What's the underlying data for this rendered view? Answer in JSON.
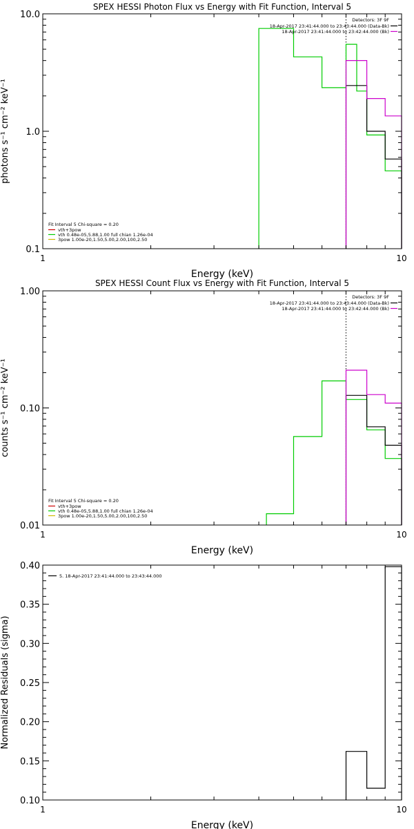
{
  "chart_data": [
    {
      "type": "line",
      "title": "SPEX HESSI Photon Flux vs Energy with Fit Function, Interval 5",
      "xlabel": "Energy (keV)",
      "ylabel": "photons s⁻¹ cm⁻² keV⁻¹",
      "xscale": "log",
      "yscale": "log",
      "xlim": [
        1,
        10
      ],
      "ylim": [
        0.1,
        10.0
      ],
      "x_ticks": [
        "1",
        "10"
      ],
      "y_ticks": [
        "0.1",
        "1.0",
        "10.0"
      ],
      "grid": false,
      "legend_top_right": {
        "header": "Detectors: 3F 9F",
        "entries": [
          {
            "text": "18-Apr-2017 23:41:44.000 to 23:43:44.000 (Data-Bk)",
            "color": "#000000"
          },
          {
            "text": "18-Apr-2017 23:41:44.000 to 23:42:44.000 (Bk)",
            "color": "#cc00cc"
          }
        ]
      },
      "legend_bottom_left": {
        "header": "Fit Interval  5   Chi-square = 0.20",
        "entries": [
          {
            "text": "vth+3pow",
            "color": "#cc0000"
          },
          {
            "text": "vth 0.48e-05,5.88,1.00  full chian 1.26e-04",
            "color": "#00cc00"
          },
          {
            "text": "3pow 1.00e-20,1.50,5.00,2.00,100,2.50",
            "color": "#ccbb00"
          }
        ]
      },
      "threshold_energy": 7.0,
      "series": [
        {
          "role": "fit",
          "color": "#00cc00",
          "edges": [
            4.0,
            5.0,
            6.0,
            7.0,
            7.5,
            8.0,
            9.0,
            10.0
          ],
          "values": [
            7.5,
            4.3,
            2.35,
            5.5,
            2.2,
            0.93,
            0.46
          ]
        },
        {
          "role": "data",
          "color": "#000000",
          "edges": [
            7.0,
            7.5,
            8.0,
            9.0,
            10.0
          ],
          "values": [
            2.45,
            2.45,
            1.0,
            0.58
          ]
        },
        {
          "role": "background",
          "color": "#cc00cc",
          "edges": [
            7.0,
            7.5,
            8.0,
            9.0,
            10.0
          ],
          "values": [
            4.0,
            4.0,
            1.9,
            1.35
          ]
        }
      ]
    },
    {
      "type": "line",
      "title": "SPEX HESSI Count Flux vs Energy with Fit Function, Interval 5",
      "xlabel": "Energy (keV)",
      "ylabel": "counts s⁻¹ cm⁻² keV⁻¹",
      "xscale": "log",
      "yscale": "log",
      "xlim": [
        1,
        10
      ],
      "ylim": [
        0.01,
        1.0
      ],
      "x_ticks": [
        "1",
        "10"
      ],
      "y_ticks": [
        "0.01",
        "0.10",
        "1.00"
      ],
      "grid": false,
      "legend_top_right": {
        "header": "Detectors: 3F 9F",
        "entries": [
          {
            "text": "18-Apr-2017 23:41:44.000 to 23:43:44.000 (Data-Bk)",
            "color": "#000000"
          },
          {
            "text": "18-Apr-2017 23:41:44.000 to 23:42:44.000 (Bk)",
            "color": "#cc00cc"
          }
        ]
      },
      "legend_bottom_left": {
        "header": "Fit Interval  5   Chi-square = 0.20",
        "entries": [
          {
            "text": "vth+3pow",
            "color": "#cc0000"
          },
          {
            "text": "vth 0.48e-05,5.88,1.00  full chian 1.26e-04",
            "color": "#00cc00"
          },
          {
            "text": "3pow 1.00e-20,1.50,5.00,2.00,100,2.50",
            "color": "#ccbb00"
          }
        ]
      },
      "threshold_energy": 7.0,
      "series": [
        {
          "role": "fit",
          "color": "#00cc00",
          "edges": [
            4.2,
            5.0,
            6.0,
            7.0,
            7.5,
            8.0,
            9.0,
            10.0
          ],
          "values": [
            0.0125,
            0.057,
            0.17,
            0.118,
            0.118,
            0.065,
            0.037
          ]
        },
        {
          "role": "data",
          "color": "#000000",
          "edges": [
            7.0,
            7.5,
            8.0,
            9.0,
            10.0
          ],
          "values": [
            0.128,
            0.128,
            0.069,
            0.048
          ]
        },
        {
          "role": "background",
          "color": "#cc00cc",
          "edges": [
            7.0,
            7.5,
            8.0,
            9.0,
            10.0
          ],
          "values": [
            0.21,
            0.21,
            0.13,
            0.11
          ]
        }
      ]
    },
    {
      "type": "line",
      "title": "",
      "xlabel": "Energy (keV)",
      "ylabel": "Normalized Residuals (sigma)",
      "xscale": "log",
      "yscale": "linear",
      "xlim": [
        1,
        10
      ],
      "ylim": [
        0.1,
        0.4
      ],
      "x_ticks": [
        "1",
        "10"
      ],
      "y_ticks": [
        "0.10",
        "0.15",
        "0.20",
        "0.25",
        "0.30",
        "0.35",
        "0.40"
      ],
      "grid": false,
      "legend_top_left": {
        "entries": [
          {
            "text": "5. 18-Apr-2017 23:41:44.000 to 23:43:44.000",
            "color": "#000000"
          }
        ]
      },
      "series": [
        {
          "role": "residuals",
          "color": "#000000",
          "edges": [
            7.0,
            8.0,
            9.0,
            10.0
          ],
          "values": [
            0.162,
            0.115,
            0.398
          ]
        }
      ]
    }
  ]
}
